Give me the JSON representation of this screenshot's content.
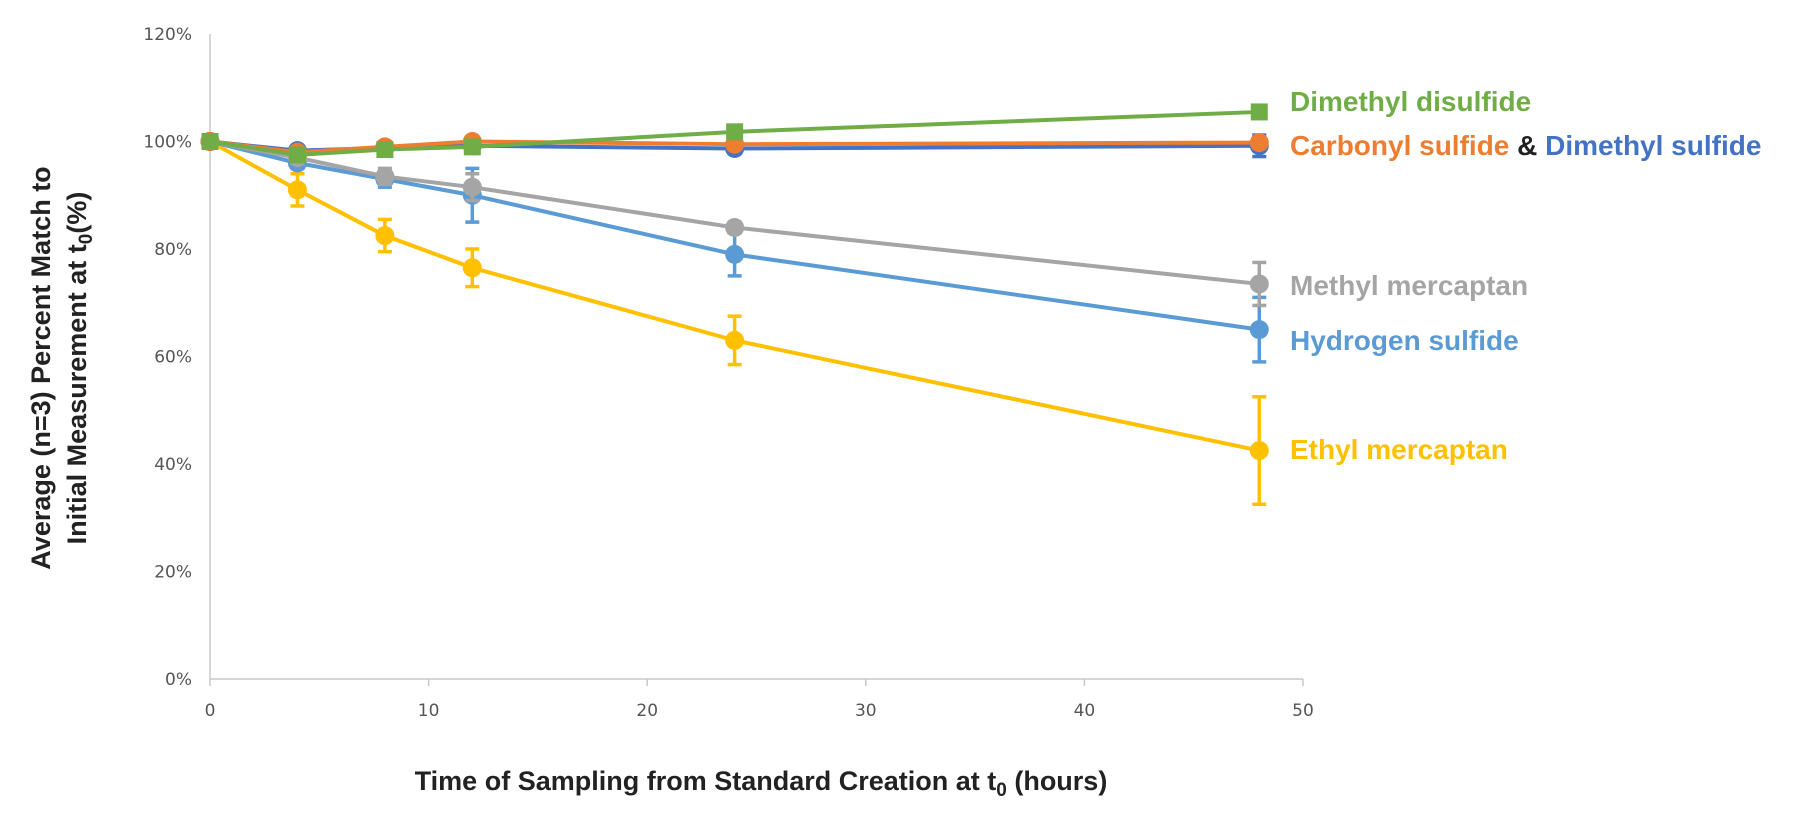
{
  "chart_data": {
    "type": "line",
    "title": "",
    "xlabel": "Time of Sampling from Standard Creation at t",
    "xlabel_subscript": "0",
    "xlabel_suffix": " (hours)",
    "ylabel_line1": "Average (n=3) Percent Match to",
    "ylabel_line2": "Initial Measurement at t",
    "ylabel_subscript": "0",
    "ylabel_suffix": "(%)",
    "xlim": [
      0,
      50
    ],
    "ylim": [
      0,
      120
    ],
    "x_ticks": [
      0,
      10,
      20,
      30,
      40,
      50
    ],
    "y_ticks": [
      0,
      20,
      40,
      60,
      80,
      100,
      120
    ],
    "y_tick_suffix": "%",
    "grid": false,
    "x": [
      0,
      4,
      8,
      12,
      24,
      48
    ],
    "series": [
      {
        "name": "Dimethyl disulfide",
        "color": "#70ad47",
        "marker": "square",
        "values": [
          100,
          97.5,
          98.5,
          99,
          101.8,
          105.5
        ],
        "errors": [
          0,
          0.8,
          0.8,
          0.8,
          0.8,
          1.2
        ]
      },
      {
        "name": "Carbonyl sulfide",
        "color": "#ed7d31",
        "marker": "circle",
        "values": [
          100,
          98,
          99,
          100,
          99.5,
          99.8
        ],
        "errors": [
          0,
          0.8,
          0.8,
          0.8,
          0.8,
          1.0
        ]
      },
      {
        "name": "Dimethyl sulfide",
        "color": "#4472c4",
        "marker": "circle",
        "values": [
          100,
          98.3,
          98.8,
          99.2,
          98.7,
          99.2
        ],
        "errors": [
          0,
          0.8,
          0.8,
          0.8,
          0.8,
          2.0
        ]
      },
      {
        "name": "Methyl mercaptan",
        "color": "#a5a5a5",
        "marker": "circle",
        "values": [
          100,
          97,
          93.5,
          91.5,
          84,
          73.5
        ],
        "errors": [
          0,
          1.0,
          1.5,
          2.5,
          1.0,
          4.0
        ]
      },
      {
        "name": "Hydrogen sulfide",
        "color": "#5b9bd5",
        "marker": "circle",
        "values": [
          100,
          96,
          93,
          90,
          79,
          65
        ],
        "errors": [
          0,
          1.0,
          1.5,
          5.0,
          4.0,
          6.0
        ]
      },
      {
        "name": "Ethyl mercaptan",
        "color": "#ffc000",
        "marker": "circle",
        "values": [
          100,
          91,
          82.5,
          76.5,
          63,
          42.5
        ],
        "errors": [
          0,
          3.0,
          3.0,
          3.5,
          4.5,
          10.0
        ]
      }
    ],
    "annotations": {
      "dimethyl_disulfide": "Dimethyl disulfide",
      "carbonyl_sulfide": "Carbonyl sulfide",
      "ampersand": " & ",
      "dimethyl_sulfide": "Dimethyl sulfide",
      "methyl_mercaptan": "Methyl mercaptan",
      "hydrogen_sulfide": "Hydrogen sulfide",
      "ethyl_mercaptan": "Ethyl mercaptan"
    },
    "annotation_colors": {
      "dimethyl_disulfide": "#70ad47",
      "carbonyl_sulfide": "#ed7d31",
      "ampersand": "#222222",
      "dimethyl_sulfide": "#4472c4",
      "methyl_mercaptan": "#a5a5a5",
      "hydrogen_sulfide": "#5b9bd5",
      "ethyl_mercaptan": "#ffc000"
    }
  }
}
